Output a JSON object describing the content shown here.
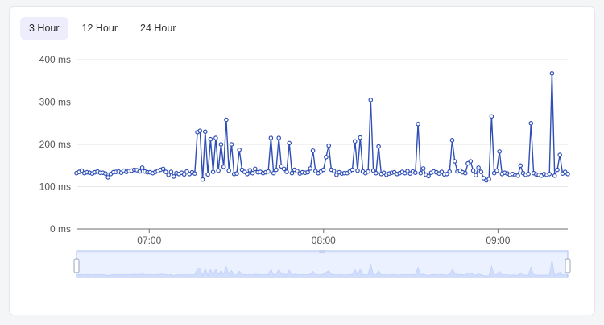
{
  "tabs": [
    {
      "label": "3 Hour"
    },
    {
      "label": "12 Hour"
    },
    {
      "label": "24 Hour"
    }
  ],
  "active_tab": 0,
  "colors": {
    "line": "#2f4fb5",
    "marker_fill": "#ffffff",
    "grid": "#e6e6e6",
    "axis": "#6e6e6e",
    "slider_fill": "#e3ebff",
    "slider_border": "#a9bdf0",
    "slider_series": "#b9cdf7"
  },
  "chart_data": {
    "type": "line",
    "title": "",
    "xlabel": "",
    "ylabel": "",
    "ylim": [
      0,
      400
    ],
    "y_ticks": [
      0,
      100,
      200,
      300,
      400
    ],
    "y_tick_labels": [
      "0 ms",
      "100 ms",
      "200 ms",
      "300 ms",
      "400 ms"
    ],
    "x_range": [
      "06:35",
      "09:24"
    ],
    "x_ticks": [
      "07:00",
      "08:00",
      "09:00"
    ],
    "grid": true,
    "legend": "none",
    "has_zoom_slider": true,
    "series": [
      {
        "values": [
          132,
          135,
          138,
          132,
          134,
          133,
          131,
          134,
          136,
          133,
          133,
          131,
          122,
          130,
          134,
          135,
          136,
          133,
          138,
          135,
          137,
          138,
          140,
          139,
          136,
          145,
          136,
          134,
          134,
          132,
          135,
          137,
          140,
          142,
          135,
          128,
          135,
          124,
          132,
          130,
          133,
          129,
          136,
          130,
          134,
          131,
          229,
          232,
          117,
          230,
          129,
          212,
          135,
          215,
          138,
          200,
          147,
          258,
          138,
          200,
          130,
          131,
          187,
          140,
          135,
          130,
          139,
          132,
          142,
          134,
          135,
          132,
          134,
          136,
          215,
          132,
          140,
          215,
          148,
          142,
          135,
          203,
          132,
          140,
          137,
          131,
          134,
          133,
          134,
          143,
          185,
          137,
          132,
          136,
          140,
          170,
          197,
          140,
          137,
          128,
          134,
          131,
          132,
          132,
          136,
          140,
          207,
          138,
          216,
          136,
          132,
          136,
          305,
          138,
          132,
          195,
          130,
          133,
          128,
          131,
          133,
          134,
          130,
          132,
          135,
          132,
          137,
          131,
          136,
          133,
          248,
          132,
          143,
          128,
          125,
          133,
          136,
          134,
          131,
          135,
          129,
          130,
          136,
          210,
          160,
          136,
          138,
          134,
          132,
          155,
          160,
          138,
          127,
          145,
          135,
          120,
          115,
          118,
          266,
          132,
          138,
          183,
          130,
          133,
          131,
          128,
          130,
          127,
          126,
          150,
          132,
          128,
          130,
          250,
          132,
          129,
          128,
          126,
          130,
          128,
          130,
          368,
          126,
          140,
          175,
          131,
          135,
          130
        ]
      }
    ]
  }
}
